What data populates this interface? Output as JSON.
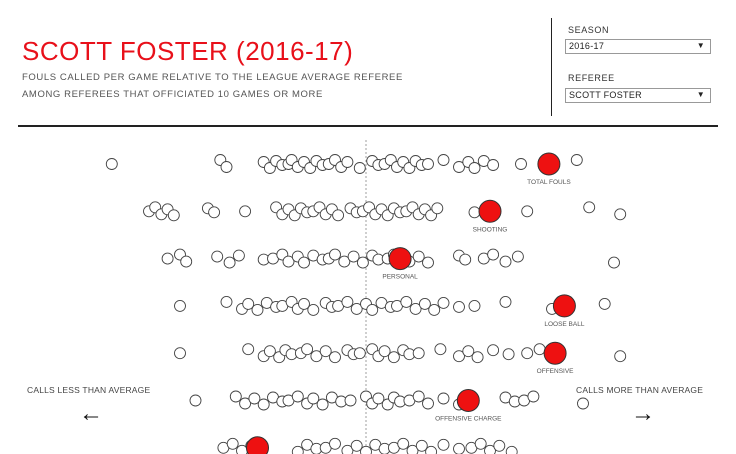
{
  "header": {
    "title": "SCOTT FOSTER (2016-17)",
    "subtitle_line1": "FOULS CALLED PER GAME RELATIVE TO THE LEAGUE AVERAGE REFEREE",
    "subtitle_line2": "AMONG REFEREES THAT OFFICIATED 10 GAMES OR MORE"
  },
  "filters": {
    "season": {
      "label": "SEASON",
      "value": "2016-17"
    },
    "referee": {
      "label": "REFEREE",
      "value": "SCOTT FOSTER"
    }
  },
  "legend": {
    "left_label": "CALLS LESS THAN AVERAGE",
    "right_label": "CALLS MORE THAN AVERAGE",
    "left_arrow": "←",
    "right_arrow": "→"
  },
  "colors": {
    "title": "#e8101a",
    "highlight": "#ee1111",
    "dot_stroke": "#444444",
    "avg_line": "#888888"
  },
  "chart_data": {
    "type": "scatter",
    "highlight_referee": "SCOTT FOSTER",
    "center_value": 0,
    "xlim": [
      -1,
      1
    ],
    "categories": [
      {
        "name": "TOTAL FOULS",
        "highlight": 0.59,
        "others": [
          -0.82,
          -0.47,
          -0.45,
          -0.33,
          -0.31,
          -0.29,
          -0.27,
          -0.25,
          -0.24,
          -0.22,
          -0.2,
          -0.18,
          -0.16,
          -0.14,
          -0.12,
          -0.1,
          -0.08,
          -0.06,
          -0.02,
          0.02,
          0.04,
          0.06,
          0.08,
          0.1,
          0.12,
          0.14,
          0.16,
          0.18,
          0.2,
          0.25,
          0.3,
          0.33,
          0.35,
          0.38,
          0.41,
          0.5,
          0.68
        ]
      },
      {
        "name": "SHOOTING",
        "highlight": 0.4,
        "others": [
          -0.7,
          -0.68,
          -0.66,
          -0.64,
          -0.62,
          -0.51,
          -0.49,
          -0.39,
          -0.29,
          -0.27,
          -0.25,
          -0.23,
          -0.21,
          -0.19,
          -0.17,
          -0.15,
          -0.13,
          -0.11,
          -0.09,
          -0.05,
          -0.03,
          -0.01,
          0.01,
          0.03,
          0.05,
          0.07,
          0.09,
          0.11,
          0.13,
          0.15,
          0.17,
          0.19,
          0.21,
          0.23,
          0.35,
          0.52,
          0.72,
          0.82
        ]
      },
      {
        "name": "PERSONAL",
        "highlight": 0.11,
        "others": [
          -0.64,
          -0.6,
          -0.58,
          -0.48,
          -0.44,
          -0.41,
          -0.33,
          -0.3,
          -0.27,
          -0.25,
          -0.22,
          -0.2,
          -0.17,
          -0.14,
          -0.12,
          -0.1,
          -0.07,
          -0.04,
          -0.01,
          0.02,
          0.04,
          0.07,
          0.09,
          0.14,
          0.17,
          0.2,
          0.3,
          0.32,
          0.38,
          0.41,
          0.45,
          0.49,
          0.8
        ]
      },
      {
        "name": "LOOSE BALL",
        "highlight": 0.64,
        "others": [
          -0.6,
          -0.45,
          -0.4,
          -0.38,
          -0.35,
          -0.32,
          -0.29,
          -0.27,
          -0.24,
          -0.22,
          -0.2,
          -0.17,
          -0.13,
          -0.11,
          -0.09,
          -0.06,
          -0.03,
          0,
          0.02,
          0.05,
          0.08,
          0.1,
          0.13,
          0.16,
          0.19,
          0.22,
          0.25,
          0.3,
          0.35,
          0.45,
          0.6,
          0.77
        ]
      },
      {
        "name": "OFFENSIVE",
        "highlight": 0.61,
        "others": [
          -0.6,
          -0.38,
          -0.33,
          -0.31,
          -0.28,
          -0.26,
          -0.24,
          -0.21,
          -0.19,
          -0.16,
          -0.13,
          -0.1,
          -0.06,
          -0.04,
          -0.02,
          0.02,
          0.04,
          0.06,
          0.09,
          0.12,
          0.14,
          0.17,
          0.24,
          0.3,
          0.33,
          0.36,
          0.41,
          0.46,
          0.52,
          0.56,
          0.82
        ]
      },
      {
        "name": "OFFENSIVE CHARGE",
        "highlight": 0.33,
        "others": [
          -0.55,
          -0.42,
          -0.39,
          -0.36,
          -0.33,
          -0.3,
          -0.27,
          -0.25,
          -0.22,
          -0.19,
          -0.17,
          -0.14,
          -0.11,
          -0.08,
          -0.05,
          0,
          0.02,
          0.04,
          0.07,
          0.09,
          0.11,
          0.14,
          0.17,
          0.2,
          0.25,
          0.3,
          0.45,
          0.48,
          0.51,
          0.54,
          0.7
        ]
      },
      {
        "name": "",
        "highlight": -0.35,
        "others": [
          -0.46,
          -0.43,
          -0.4,
          -0.37,
          -0.22,
          -0.19,
          -0.16,
          -0.13,
          -0.1,
          -0.06,
          -0.03,
          0,
          0.03,
          0.06,
          0.09,
          0.12,
          0.15,
          0.18,
          0.21,
          0.25,
          0.3,
          0.34,
          0.37,
          0.4,
          0.43,
          0.47
        ]
      }
    ]
  }
}
